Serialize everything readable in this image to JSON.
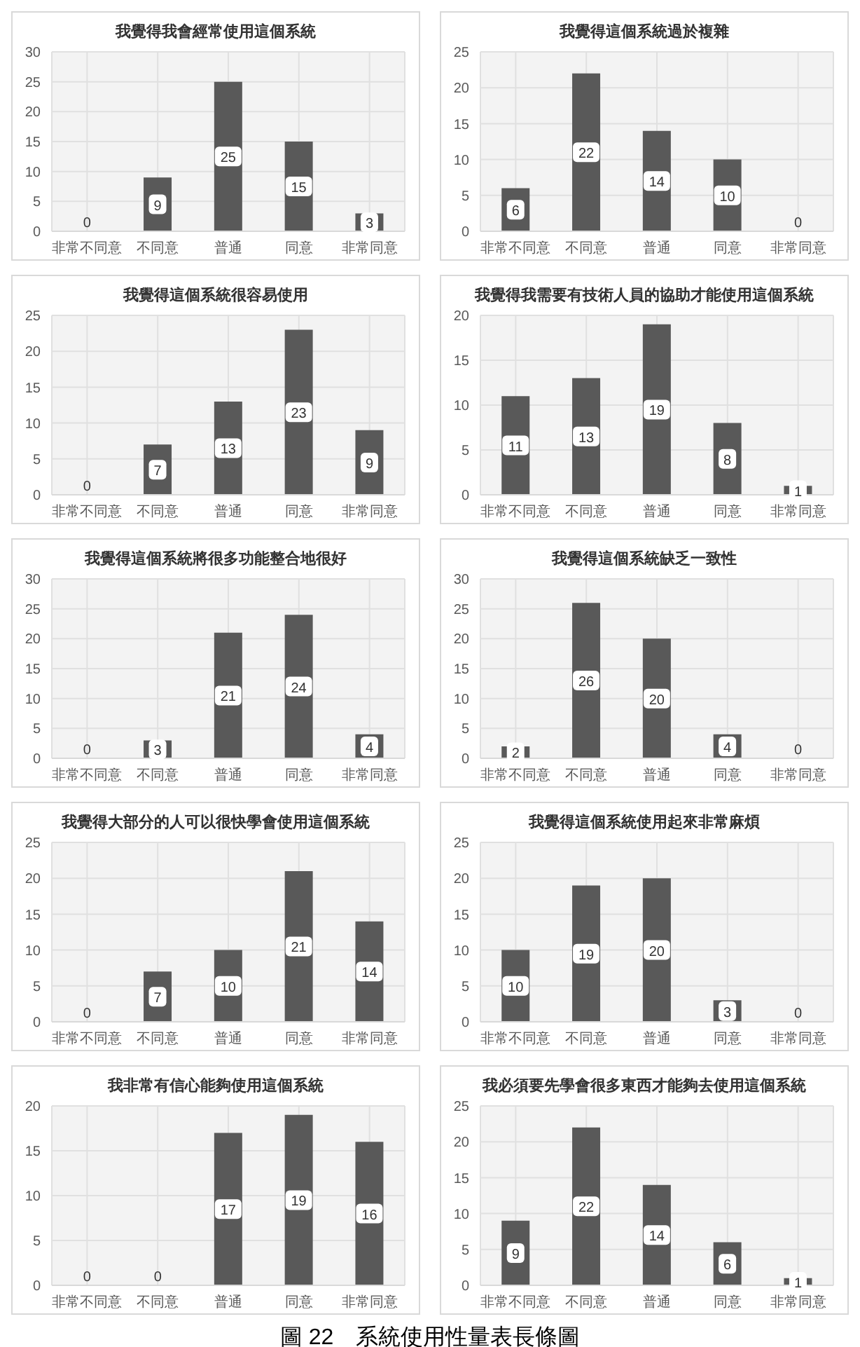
{
  "chart_data": [
    {
      "type": "bar",
      "title": "我覺得我會經常使用這個系統",
      "categories": [
        "非常不同意",
        "不同意",
        "普通",
        "同意",
        "非常同意"
      ],
      "values": [
        0,
        9,
        25,
        15,
        3
      ],
      "color": "#595959",
      "ylim": [
        0,
        30
      ],
      "yticks": [
        0,
        5,
        10,
        15,
        20,
        25,
        30
      ],
      "grid": true,
      "data_labels": true
    },
    {
      "type": "bar",
      "title": "我覺得這個系統過於複雜",
      "categories": [
        "非常不同意",
        "不同意",
        "普通",
        "同意",
        "非常同意"
      ],
      "values": [
        6,
        22,
        14,
        10,
        0
      ],
      "color": "#595959",
      "ylim": [
        0,
        25
      ],
      "yticks": [
        0,
        5,
        10,
        15,
        20,
        25
      ],
      "grid": true,
      "data_labels": true
    },
    {
      "type": "bar",
      "title": "我覺得這個系統很容易使用",
      "categories": [
        "非常不同意",
        "不同意",
        "普通",
        "同意",
        "非常同意"
      ],
      "values": [
        0,
        7,
        13,
        23,
        9
      ],
      "color": "#595959",
      "ylim": [
        0,
        25
      ],
      "yticks": [
        0,
        5,
        10,
        15,
        20,
        25
      ],
      "grid": true,
      "data_labels": true
    },
    {
      "type": "bar",
      "title": "我覺得我需要有技術人員的協助才能使用這個系統",
      "categories": [
        "非常不同意",
        "不同意",
        "普通",
        "同意",
        "非常同意"
      ],
      "values": [
        11,
        13,
        19,
        8,
        1
      ],
      "color": "#595959",
      "ylim": [
        0,
        20
      ],
      "yticks": [
        0,
        5,
        10,
        15,
        20
      ],
      "grid": true,
      "data_labels": true
    },
    {
      "type": "bar",
      "title": "我覺得這個系統將很多功能整合地很好",
      "categories": [
        "非常不同意",
        "不同意",
        "普通",
        "同意",
        "非常同意"
      ],
      "values": [
        0,
        3,
        21,
        24,
        4
      ],
      "color": "#595959",
      "ylim": [
        0,
        30
      ],
      "yticks": [
        0,
        5,
        10,
        15,
        20,
        25,
        30
      ],
      "grid": true,
      "data_labels": true
    },
    {
      "type": "bar",
      "title": "我覺得這個系統缺乏一致性",
      "categories": [
        "非常不同意",
        "不同意",
        "普通",
        "同意",
        "非常同意"
      ],
      "values": [
        2,
        26,
        20,
        4,
        0
      ],
      "color": "#595959",
      "ylim": [
        0,
        30
      ],
      "yticks": [
        0,
        5,
        10,
        15,
        20,
        25,
        30
      ],
      "grid": true,
      "data_labels": true
    },
    {
      "type": "bar",
      "title": "我覺得大部分的人可以很快學會使用這個系統",
      "categories": [
        "非常不同意",
        "不同意",
        "普通",
        "同意",
        "非常同意"
      ],
      "values": [
        0,
        7,
        10,
        21,
        14
      ],
      "color": "#595959",
      "ylim": [
        0,
        25
      ],
      "yticks": [
        0,
        5,
        10,
        15,
        20,
        25
      ],
      "grid": true,
      "data_labels": true
    },
    {
      "type": "bar",
      "title": "我覺得這個系統使用起來非常麻煩",
      "categories": [
        "非常不同意",
        "不同意",
        "普通",
        "同意",
        "非常同意"
      ],
      "values": [
        10,
        19,
        20,
        3,
        0
      ],
      "color": "#595959",
      "ylim": [
        0,
        25
      ],
      "yticks": [
        0,
        5,
        10,
        15,
        20,
        25
      ],
      "grid": true,
      "data_labels": true
    },
    {
      "type": "bar",
      "title": "我非常有信心能夠使用這個系統",
      "categories": [
        "非常不同意",
        "不同意",
        "普通",
        "同意",
        "非常同意"
      ],
      "values": [
        0,
        0,
        17,
        19,
        16
      ],
      "color": "#595959",
      "ylim": [
        0,
        20
      ],
      "yticks": [
        0,
        5,
        10,
        15,
        20
      ],
      "grid": true,
      "data_labels": true
    },
    {
      "type": "bar",
      "title": "我必須要先學會很多東西才能夠去使用這個系統",
      "categories": [
        "非常不同意",
        "不同意",
        "普通",
        "同意",
        "非常同意"
      ],
      "values": [
        9,
        22,
        14,
        6,
        1
      ],
      "color": "#595959",
      "ylim": [
        0,
        25
      ],
      "yticks": [
        0,
        5,
        10,
        15,
        20,
        25
      ],
      "grid": true,
      "data_labels": true,
      "annotations": [
        "圖 22　系統使用性量表長條圖"
      ]
    }
  ]
}
